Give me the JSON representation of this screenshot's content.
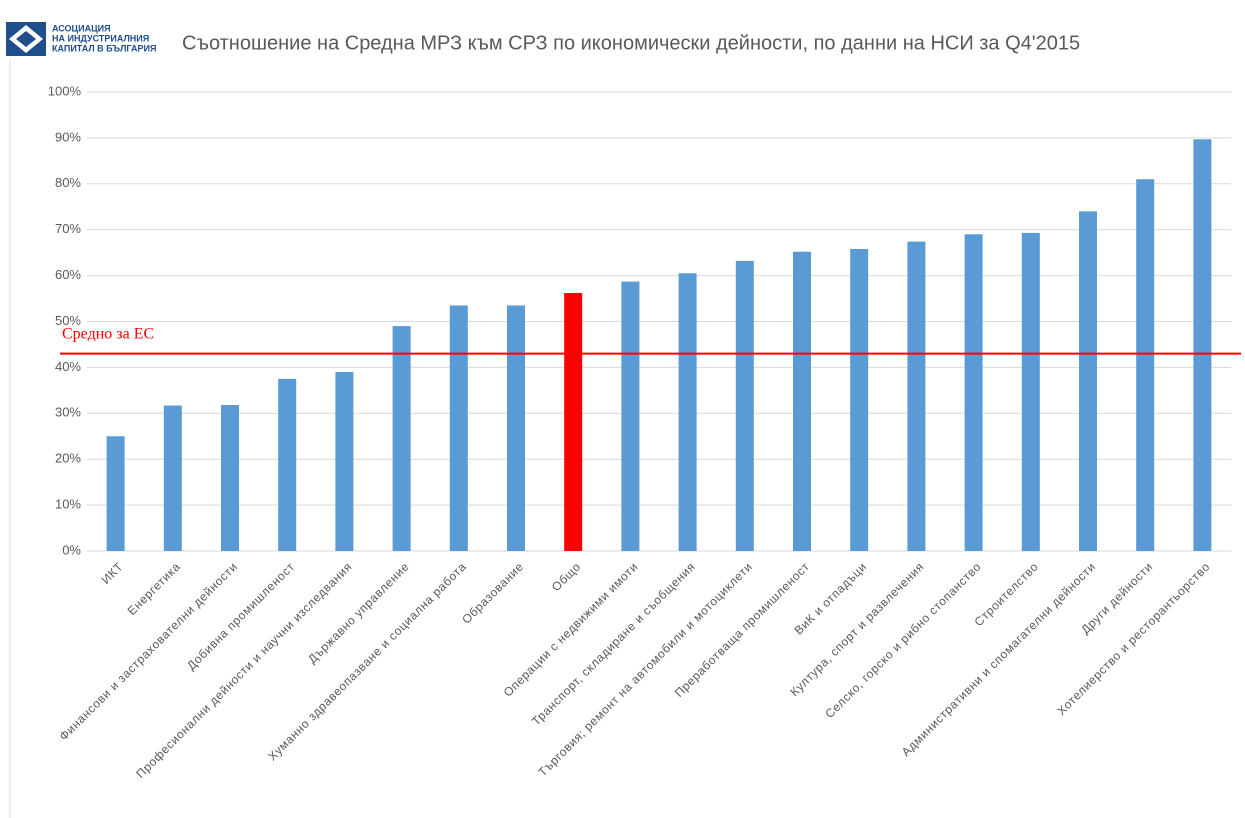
{
  "logo": {
    "lines": [
      "АСОЦИАЦИЯ",
      "НА ИНДУСТРИАЛНИЯ",
      "КАПИТАЛ В БЪЛГАРИЯ"
    ]
  },
  "chart_data": {
    "type": "bar",
    "title": "Съотношение на Средна МРЗ към СРЗ по икономически дейности, по данни на НСИ за Q4'2015",
    "categories": [
      "ИКТ",
      "Енергетика",
      "Финансови и застрахователни дейности",
      "Добивна промишленост",
      "Професионални дейности и научни изследвания",
      "Държавно управление",
      "Хуманно здравеопазване и социална работа",
      "Образование",
      "Общо",
      "Операции с недвижими имоти",
      "Транспорт, складиране и съобщения",
      "Търговия; ремонт на автомобили и мотоциклети",
      "Преработваща промишленост",
      "ВиК и отпадъци",
      "Култура, спорт и развлечения",
      "Селско, горско и рибно стопанство",
      "Строителство",
      "Административни и спомагателни дейности",
      "Други дейности",
      "Хотелиерство и ресторантьорство"
    ],
    "values": [
      25,
      31.7,
      31.8,
      37.5,
      39,
      49,
      53.5,
      53.5,
      56.2,
      58.7,
      60.5,
      63.2,
      65.2,
      65.8,
      67.4,
      69,
      69.3,
      74,
      81,
      89.7
    ],
    "colors": [
      "#5b9bd5",
      "#5b9bd5",
      "#5b9bd5",
      "#5b9bd5",
      "#5b9bd5",
      "#5b9bd5",
      "#5b9bd5",
      "#5b9bd5",
      "#ff0000",
      "#5b9bd5",
      "#5b9bd5",
      "#5b9bd5",
      "#5b9bd5",
      "#5b9bd5",
      "#5b9bd5",
      "#5b9bd5",
      "#5b9bd5",
      "#5b9bd5",
      "#5b9bd5",
      "#5b9bd5"
    ],
    "ylim": [
      0,
      100
    ],
    "yticks": [
      {
        "value": 0,
        "label": "0%"
      },
      {
        "value": 10,
        "label": "10%"
      },
      {
        "value": 20,
        "label": "20%"
      },
      {
        "value": 30,
        "label": "30%"
      },
      {
        "value": 40,
        "label": "40%"
      },
      {
        "value": 50,
        "label": "50%"
      },
      {
        "value": 60,
        "label": "60%"
      },
      {
        "value": 70,
        "label": "70%"
      },
      {
        "value": 80,
        "label": "80%"
      },
      {
        "value": 90,
        "label": "90%"
      },
      {
        "value": 100,
        "label": "100%"
      }
    ],
    "grid": true,
    "reference_line": {
      "label": "Средно за ЕС",
      "value": 43,
      "color": "#ff0000"
    }
  }
}
